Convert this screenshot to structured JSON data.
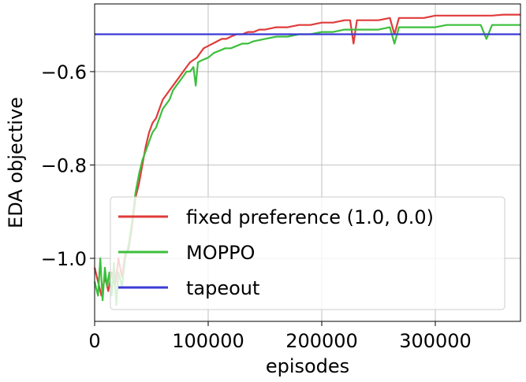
{
  "chart_data": {
    "type": "line",
    "title": "",
    "xlabel": "episodes",
    "ylabel": "EDA objective",
    "xlim": [
      0,
      375000
    ],
    "ylim": [
      -1.135,
      -0.455
    ],
    "x_ticks": [
      0,
      100000,
      200000,
      300000
    ],
    "x_tick_labels": [
      "0",
      "100000",
      "200000",
      "300000"
    ],
    "y_ticks": [
      -1.0,
      -0.8,
      -0.6
    ],
    "y_tick_labels": [
      "−1.0",
      "−0.8",
      "−0.6"
    ],
    "grid": true,
    "legend_position": "lower-right",
    "series": [
      {
        "name": "fixed preference (1.0, 0.0)",
        "color": "#e03b3b",
        "points": [
          [
            0,
            -1.02
          ],
          [
            3000,
            -1.05
          ],
          [
            6000,
            -1.08
          ],
          [
            9000,
            -1.04
          ],
          [
            12000,
            -1.07
          ],
          [
            15000,
            -1.03
          ],
          [
            18000,
            -1.06
          ],
          [
            21000,
            -1.0
          ],
          [
            24000,
            -1.04
          ],
          [
            27000,
            -0.99
          ],
          [
            30000,
            -0.98
          ],
          [
            33000,
            -0.93
          ],
          [
            36000,
            -0.87
          ],
          [
            39000,
            -0.84
          ],
          [
            42000,
            -0.8
          ],
          [
            45000,
            -0.76
          ],
          [
            48000,
            -0.73
          ],
          [
            51000,
            -0.71
          ],
          [
            54000,
            -0.7
          ],
          [
            57000,
            -0.68
          ],
          [
            60000,
            -0.66
          ],
          [
            63000,
            -0.65
          ],
          [
            66000,
            -0.64
          ],
          [
            69000,
            -0.63
          ],
          [
            72000,
            -0.62
          ],
          [
            75000,
            -0.61
          ],
          [
            78000,
            -0.6
          ],
          [
            81000,
            -0.59
          ],
          [
            84000,
            -0.58
          ],
          [
            87000,
            -0.575
          ],
          [
            90000,
            -0.57
          ],
          [
            93000,
            -0.56
          ],
          [
            96000,
            -0.55
          ],
          [
            100000,
            -0.545
          ],
          [
            104000,
            -0.54
          ],
          [
            108000,
            -0.535
          ],
          [
            112000,
            -0.53
          ],
          [
            116000,
            -0.53
          ],
          [
            120000,
            -0.525
          ],
          [
            125000,
            -0.52
          ],
          [
            130000,
            -0.52
          ],
          [
            135000,
            -0.515
          ],
          [
            140000,
            -0.515
          ],
          [
            145000,
            -0.51
          ],
          [
            150000,
            -0.51
          ],
          [
            160000,
            -0.505
          ],
          [
            170000,
            -0.505
          ],
          [
            180000,
            -0.5
          ],
          [
            190000,
            -0.5
          ],
          [
            200000,
            -0.495
          ],
          [
            210000,
            -0.495
          ],
          [
            220000,
            -0.49
          ],
          [
            225000,
            -0.49
          ],
          [
            228000,
            -0.54
          ],
          [
            231000,
            -0.49
          ],
          [
            240000,
            -0.49
          ],
          [
            250000,
            -0.49
          ],
          [
            260000,
            -0.485
          ],
          [
            264000,
            -0.52
          ],
          [
            268000,
            -0.485
          ],
          [
            280000,
            -0.485
          ],
          [
            290000,
            -0.485
          ],
          [
            300000,
            -0.48
          ],
          [
            310000,
            -0.48
          ],
          [
            320000,
            -0.48
          ],
          [
            330000,
            -0.48
          ],
          [
            340000,
            -0.48
          ],
          [
            350000,
            -0.48
          ],
          [
            360000,
            -0.478
          ],
          [
            375000,
            -0.478
          ]
        ]
      },
      {
        "name": "MOPPO",
        "color": "#3cbf3c",
        "points": [
          [
            0,
            -1.05
          ],
          [
            3000,
            -1.08
          ],
          [
            5000,
            -1.0
          ],
          [
            7000,
            -1.09
          ],
          [
            9000,
            -1.02
          ],
          [
            11000,
            -1.06
          ],
          [
            13000,
            -1.03
          ],
          [
            15000,
            -1.08
          ],
          [
            17000,
            -1.01
          ],
          [
            19000,
            -1.1
          ],
          [
            21000,
            -1.03
          ],
          [
            24000,
            -1.06
          ],
          [
            27000,
            -1.0
          ],
          [
            30000,
            -0.97
          ],
          [
            33000,
            -0.92
          ],
          [
            36000,
            -0.86
          ],
          [
            39000,
            -0.82
          ],
          [
            42000,
            -0.79
          ],
          [
            45000,
            -0.77
          ],
          [
            48000,
            -0.75
          ],
          [
            51000,
            -0.73
          ],
          [
            54000,
            -0.72
          ],
          [
            57000,
            -0.7
          ],
          [
            60000,
            -0.68
          ],
          [
            63000,
            -0.67
          ],
          [
            66000,
            -0.66
          ],
          [
            69000,
            -0.64
          ],
          [
            72000,
            -0.63
          ],
          [
            75000,
            -0.62
          ],
          [
            78000,
            -0.61
          ],
          [
            81000,
            -0.6
          ],
          [
            84000,
            -0.6
          ],
          [
            87000,
            -0.59
          ],
          [
            89000,
            -0.63
          ],
          [
            91000,
            -0.58
          ],
          [
            95000,
            -0.575
          ],
          [
            100000,
            -0.57
          ],
          [
            105000,
            -0.56
          ],
          [
            110000,
            -0.555
          ],
          [
            115000,
            -0.55
          ],
          [
            120000,
            -0.55
          ],
          [
            125000,
            -0.545
          ],
          [
            130000,
            -0.54
          ],
          [
            135000,
            -0.54
          ],
          [
            140000,
            -0.535
          ],
          [
            150000,
            -0.53
          ],
          [
            160000,
            -0.525
          ],
          [
            170000,
            -0.525
          ],
          [
            180000,
            -0.52
          ],
          [
            190000,
            -0.52
          ],
          [
            200000,
            -0.515
          ],
          [
            210000,
            -0.515
          ],
          [
            220000,
            -0.51
          ],
          [
            230000,
            -0.51
          ],
          [
            240000,
            -0.51
          ],
          [
            250000,
            -0.51
          ],
          [
            260000,
            -0.505
          ],
          [
            264000,
            -0.54
          ],
          [
            268000,
            -0.505
          ],
          [
            280000,
            -0.505
          ],
          [
            290000,
            -0.505
          ],
          [
            300000,
            -0.505
          ],
          [
            310000,
            -0.5
          ],
          [
            320000,
            -0.5
          ],
          [
            330000,
            -0.5
          ],
          [
            340000,
            -0.5
          ],
          [
            345000,
            -0.53
          ],
          [
            350000,
            -0.5
          ],
          [
            360000,
            -0.5
          ],
          [
            375000,
            -0.5
          ]
        ]
      },
      {
        "name": "tapeout",
        "color": "#3a3ad6",
        "points": [
          [
            0,
            -0.52
          ],
          [
            375000,
            -0.52
          ]
        ]
      }
    ]
  }
}
